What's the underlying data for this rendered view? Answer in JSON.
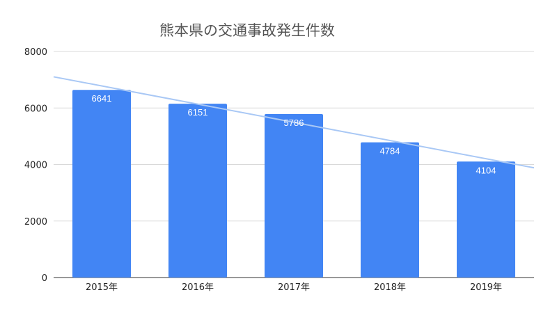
{
  "chart_data": {
    "type": "bar",
    "title": "熊本県の交通事故発生件数",
    "categories": [
      "2015年",
      "2016年",
      "2017年",
      "2018年",
      "2019年"
    ],
    "series": [
      {
        "values": [
          6641,
          6151,
          5786,
          4784,
          4104
        ]
      }
    ],
    "data_labels": [
      "6641",
      "6151",
      "5786",
      "4784",
      "4104"
    ],
    "ylim": [
      0,
      8000
    ],
    "yticks": [
      "0",
      "2000",
      "4000",
      "6000",
      "8000"
    ],
    "xlabel": "",
    "ylabel": "",
    "grid": true,
    "legend": "none",
    "trendline": {
      "type": "linear",
      "color": "#a9c8f5"
    },
    "colors": {
      "bar": "#4285f4",
      "trendline": "#a9c8f5",
      "grid": "#d9d9d9",
      "title": "#555555"
    }
  }
}
